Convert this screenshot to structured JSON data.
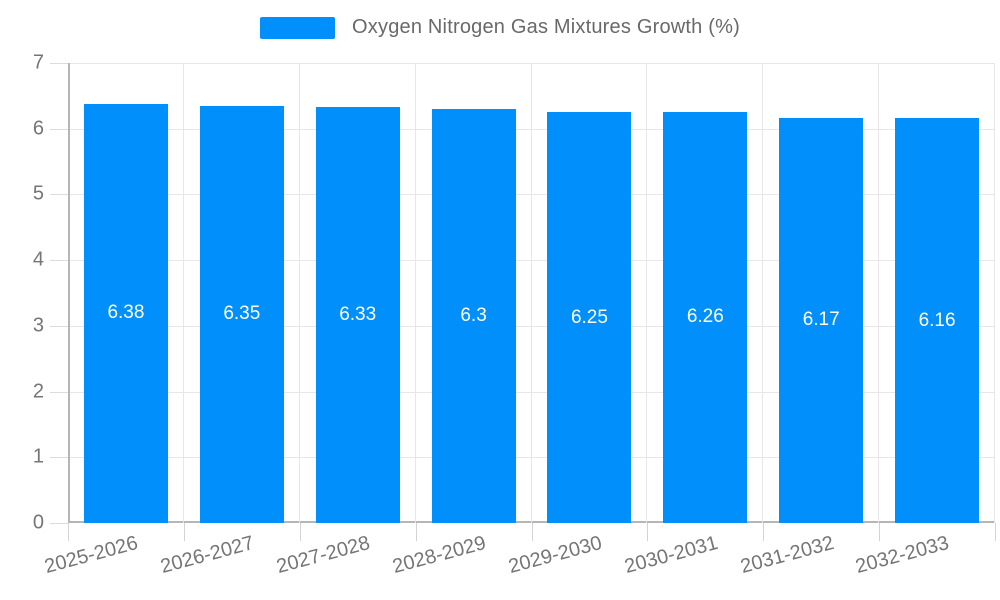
{
  "chart_data": {
    "type": "bar",
    "title": "Oxygen Nitrogen Gas Mixtures Growth (%)",
    "categories": [
      "2025-2026",
      "2026-2027",
      "2027-2028",
      "2028-2029",
      "2029-2030",
      "2030-2031",
      "2031-2032",
      "2032-2033"
    ],
    "series": [
      {
        "name": "Oxygen Nitrogen Gas Mixtures Growth (%)",
        "values": [
          6.38,
          6.35,
          6.33,
          6.3,
          6.25,
          6.26,
          6.17,
          6.16
        ],
        "value_labels": [
          "6.38",
          "6.35",
          "6.33",
          "6.3",
          "6.25",
          "6.26",
          "6.17",
          "6.16"
        ]
      }
    ],
    "xlabel": "",
    "ylabel": "",
    "ylim": [
      0,
      7
    ],
    "yticks": [
      0,
      1,
      2,
      3,
      4,
      5,
      6,
      7
    ],
    "grid": true,
    "legend_position": "top-center",
    "value_label_position": "center-of-bar",
    "colors": {
      "bar": "#008FFB",
      "value_label_text": "#ffffff",
      "axis_line": "#b6b6b6",
      "gridline": "#e7e7e7",
      "tick_label_text": "#757575",
      "legend_text": "#696969",
      "background": "#ffffff"
    }
  }
}
